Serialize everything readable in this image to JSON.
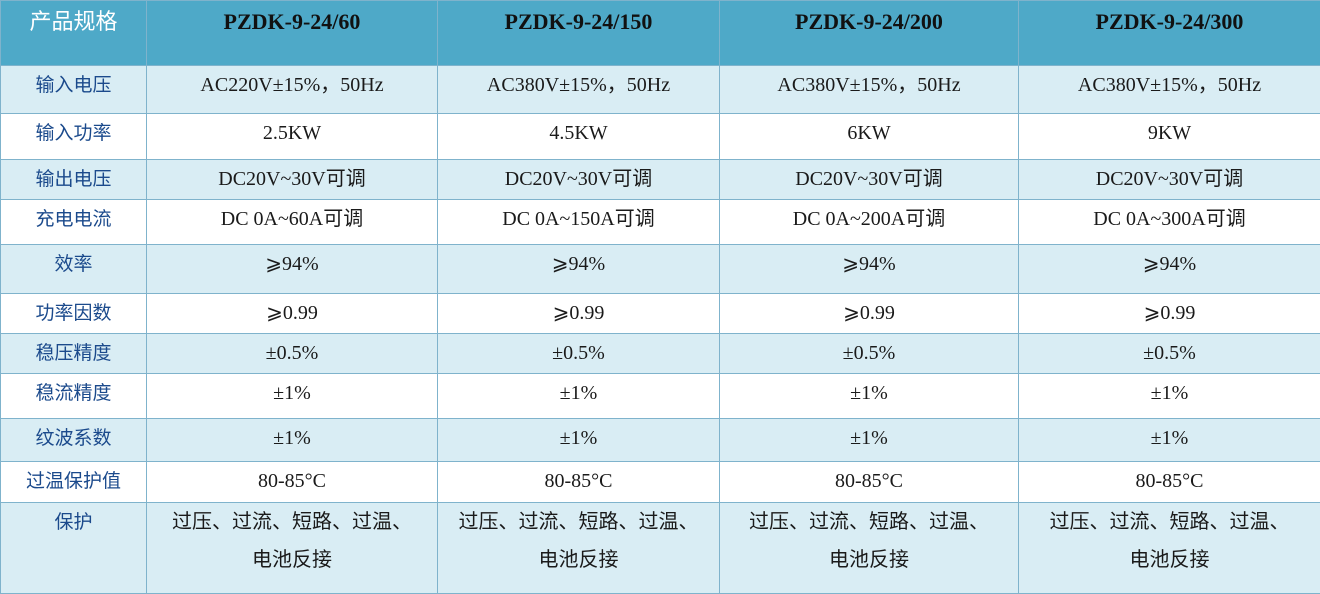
{
  "header": {
    "label": "产品规格",
    "models": [
      "PZDK-9-24/60",
      "PZDK-9-24/150",
      "PZDK-9-24/200",
      "PZDK-9-24/300"
    ]
  },
  "rows": [
    {
      "label": "输入电压",
      "values": [
        "AC220V±15%，50Hz",
        "AC380V±15%，50Hz",
        "AC380V±15%，50Hz",
        "AC380V±15%，50Hz"
      ]
    },
    {
      "label": "输入功率",
      "values": [
        "2.5KW",
        "4.5KW",
        "6KW",
        "9KW"
      ]
    },
    {
      "label": "输出电压",
      "values": [
        "DC20V~30V可调",
        "DC20V~30V可调",
        "DC20V~30V可调",
        "DC20V~30V可调"
      ]
    },
    {
      "label": "充电电流",
      "values": [
        "DC 0A~60A可调",
        "DC 0A~150A可调",
        "DC 0A~200A可调",
        "DC 0A~300A可调"
      ]
    },
    {
      "label": "效率",
      "values": [
        "⩾94%",
        "⩾94%",
        "⩾94%",
        "⩾94%"
      ]
    },
    {
      "label": "功率因数",
      "values": [
        "⩾0.99",
        "⩾0.99",
        "⩾0.99",
        "⩾0.99"
      ]
    },
    {
      "label": "稳压精度",
      "values": [
        "±0.5%",
        "±0.5%",
        "±0.5%",
        "±0.5%"
      ]
    },
    {
      "label": "稳流精度",
      "values": [
        "±1%",
        "±1%",
        "±1%",
        "±1%"
      ]
    },
    {
      "label": "纹波系数",
      "values": [
        "±1%",
        "±1%",
        "±1%",
        "±1%"
      ]
    },
    {
      "label": "过温保护值",
      "values": [
        "80-85°C",
        "80-85°C",
        "80-85°C",
        "80-85°C"
      ]
    }
  ],
  "protection": {
    "label": "保护",
    "line1": [
      "过压、过流、短路、过温、",
      "过压、过流、短路、过温、",
      "过压、过流、短路、过温、",
      "过压、过流、短路、过温、"
    ],
    "line2": [
      "电池反接",
      "电池反接",
      "电池反接",
      "电池反接"
    ]
  }
}
